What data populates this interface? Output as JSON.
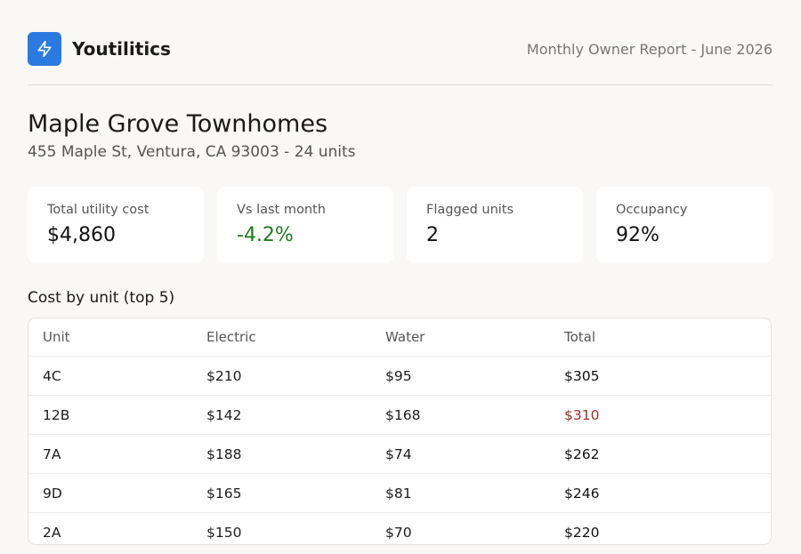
{
  "app": {
    "name": "Youtilitics",
    "report_title": "Monthly Owner Report - June 2026",
    "accent": "#2a7ae2"
  },
  "property": {
    "name": "Maple Grove Townhomes",
    "address": "455 Maple St, Ventura, CA 93003 - 24 units"
  },
  "kpis": [
    {
      "label": "Total utility cost",
      "value": "$4,860"
    },
    {
      "label": "Vs last month",
      "value": "-4.2%",
      "color": "#1e7a1e"
    },
    {
      "label": "Flagged units",
      "value": "2"
    },
    {
      "label": "Occupancy",
      "value": "92%"
    }
  ],
  "table": {
    "title": "Cost by unit (top 5)",
    "columns": [
      "Unit",
      "Electric",
      "Water",
      "Total"
    ],
    "rows": [
      {
        "unit": "4C",
        "electric": "$210",
        "water": "$95",
        "total": "$305"
      },
      {
        "unit": "12B",
        "electric": "$142",
        "water": "$168",
        "total": "$310",
        "total_color": "#a32b2b"
      },
      {
        "unit": "7A",
        "electric": "$188",
        "water": "$74",
        "total": "$262"
      },
      {
        "unit": "9D",
        "electric": "$165",
        "water": "$81",
        "total": "$246"
      },
      {
        "unit": "2A",
        "electric": "$150",
        "water": "$70",
        "total": "$220"
      }
    ]
  },
  "icons": {
    "logo": "lightning-bolt-icon"
  }
}
